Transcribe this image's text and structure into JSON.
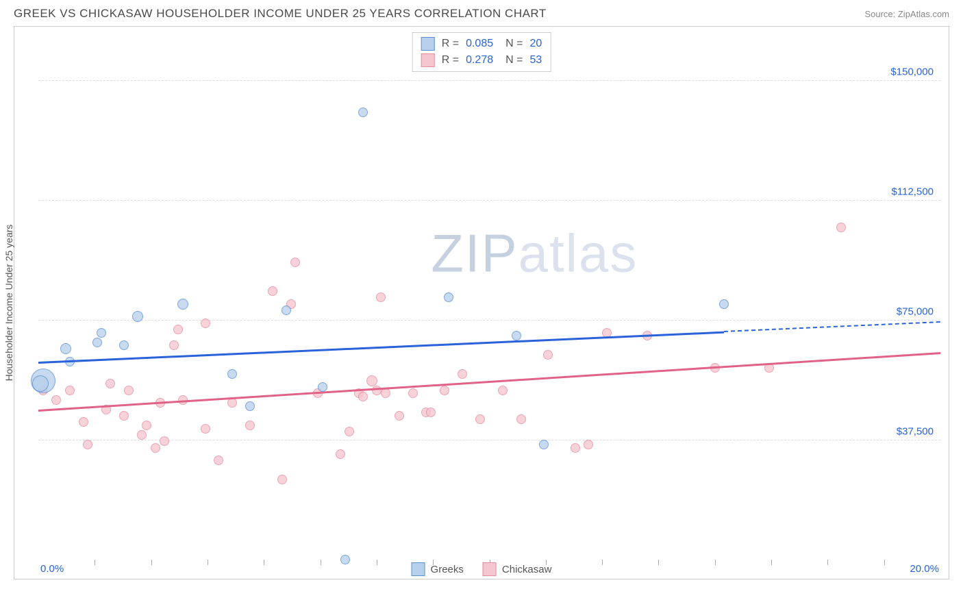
{
  "header": {
    "title": "GREEK VS CHICKASAW HOUSEHOLDER INCOME UNDER 25 YEARS CORRELATION CHART",
    "source": "Source: ZipAtlas.com"
  },
  "chart": {
    "type": "scatter",
    "ylabel": "Householder Income Under 25 years",
    "x_axis": {
      "min": 0.0,
      "max": 20.0,
      "label_left": "0.0%",
      "label_right": "20.0%",
      "tick_positions_pct": [
        6.25,
        12.5,
        18.75,
        25,
        31.25,
        37.5,
        43.75,
        50,
        56.25,
        62.5,
        68.75,
        75,
        81.25,
        87.5,
        93.75
      ]
    },
    "y_axis": {
      "min": 0,
      "max": 165000,
      "ticks": [
        37500,
        75000,
        112500,
        150000
      ],
      "tick_labels": [
        "$37,500",
        "$75,000",
        "$112,500",
        "$150,000"
      ]
    },
    "background_color": "#ffffff",
    "grid_color": "#dddddd",
    "watermark": {
      "text_a": "ZIP",
      "text_b": "atlas"
    },
    "series": {
      "greeks": {
        "label": "Greeks",
        "fill": "#b8d0ec",
        "stroke": "#5a8fd6",
        "trend_color": "#2962d9",
        "stats_r": "0.085",
        "stats_n": "20",
        "trend": {
          "x1": 0.0,
          "y1": 62000,
          "x2_solid": 15.2,
          "y2_solid": 71500,
          "x2_dash": 20.0,
          "y2_dash": 74500
        },
        "points": [
          {
            "x": 0.1,
            "y": 56000,
            "r": 18
          },
          {
            "x": 0.05,
            "y": 55000,
            "r": 12
          },
          {
            "x": 0.6,
            "y": 66000,
            "r": 8
          },
          {
            "x": 0.7,
            "y": 62000,
            "r": 7
          },
          {
            "x": 1.3,
            "y": 68000,
            "r": 7
          },
          {
            "x": 1.4,
            "y": 71000,
            "r": 7
          },
          {
            "x": 1.9,
            "y": 67000,
            "r": 7
          },
          {
            "x": 2.2,
            "y": 76000,
            "r": 8
          },
          {
            "x": 3.2,
            "y": 80000,
            "r": 8
          },
          {
            "x": 4.3,
            "y": 58000,
            "r": 7
          },
          {
            "x": 4.7,
            "y": 48000,
            "r": 7
          },
          {
            "x": 5.5,
            "y": 78000,
            "r": 7
          },
          {
            "x": 6.3,
            "y": 54000,
            "r": 7
          },
          {
            "x": 6.8,
            "y": 0,
            "r": 7
          },
          {
            "x": 7.2,
            "y": 140000,
            "r": 7
          },
          {
            "x": 9.1,
            "y": 82000,
            "r": 7
          },
          {
            "x": 10.6,
            "y": 70000,
            "r": 7
          },
          {
            "x": 11.2,
            "y": 36000,
            "r": 7
          },
          {
            "x": 15.2,
            "y": 80000,
            "r": 7
          }
        ]
      },
      "chickasaw": {
        "label": "Chickasaw",
        "fill": "#f5c6cf",
        "stroke": "#e58ba0",
        "trend_color": "#e06287",
        "stats_r": "0.278",
        "stats_n": "53",
        "trend": {
          "x1": 0.0,
          "y1": 47000,
          "x2_solid": 20.0,
          "y2_solid": 65000
        },
        "points": [
          {
            "x": 0.1,
            "y": 53000,
            "r": 7
          },
          {
            "x": 0.4,
            "y": 50000,
            "r": 7
          },
          {
            "x": 0.7,
            "y": 53000,
            "r": 7
          },
          {
            "x": 1.0,
            "y": 43000,
            "r": 7
          },
          {
            "x": 1.1,
            "y": 36000,
            "r": 7
          },
          {
            "x": 1.5,
            "y": 47000,
            "r": 7
          },
          {
            "x": 1.6,
            "y": 55000,
            "r": 7
          },
          {
            "x": 1.9,
            "y": 45000,
            "r": 7
          },
          {
            "x": 2.0,
            "y": 53000,
            "r": 7
          },
          {
            "x": 2.3,
            "y": 39000,
            "r": 7
          },
          {
            "x": 2.4,
            "y": 42000,
            "r": 7
          },
          {
            "x": 2.6,
            "y": 35000,
            "r": 7
          },
          {
            "x": 2.8,
            "y": 37000,
            "r": 7
          },
          {
            "x": 2.7,
            "y": 49000,
            "r": 7
          },
          {
            "x": 3.0,
            "y": 67000,
            "r": 7
          },
          {
            "x": 3.1,
            "y": 72000,
            "r": 7
          },
          {
            "x": 3.2,
            "y": 50000,
            "r": 7
          },
          {
            "x": 3.7,
            "y": 74000,
            "r": 7
          },
          {
            "x": 3.7,
            "y": 41000,
            "r": 7
          },
          {
            "x": 4.0,
            "y": 31000,
            "r": 7
          },
          {
            "x": 4.3,
            "y": 49000,
            "r": 7
          },
          {
            "x": 4.7,
            "y": 42000,
            "r": 7
          },
          {
            "x": 5.2,
            "y": 84000,
            "r": 7
          },
          {
            "x": 5.4,
            "y": 25000,
            "r": 7
          },
          {
            "x": 5.6,
            "y": 80000,
            "r": 7
          },
          {
            "x": 5.7,
            "y": 93000,
            "r": 7
          },
          {
            "x": 6.2,
            "y": 52000,
            "r": 7
          },
          {
            "x": 6.7,
            "y": 33000,
            "r": 7
          },
          {
            "x": 6.9,
            "y": 40000,
            "r": 7
          },
          {
            "x": 7.1,
            "y": 52000,
            "r": 7
          },
          {
            "x": 7.2,
            "y": 51000,
            "r": 7
          },
          {
            "x": 7.4,
            "y": 56000,
            "r": 8
          },
          {
            "x": 7.5,
            "y": 53000,
            "r": 7
          },
          {
            "x": 7.6,
            "y": 82000,
            "r": 7
          },
          {
            "x": 7.7,
            "y": 52000,
            "r": 7
          },
          {
            "x": 8.0,
            "y": 45000,
            "r": 7
          },
          {
            "x": 8.3,
            "y": 52000,
            "r": 7
          },
          {
            "x": 8.6,
            "y": 46000,
            "r": 7
          },
          {
            "x": 8.7,
            "y": 46000,
            "r": 7
          },
          {
            "x": 9.0,
            "y": 53000,
            "r": 7
          },
          {
            "x": 9.4,
            "y": 58000,
            "r": 7
          },
          {
            "x": 9.8,
            "y": 44000,
            "r": 7
          },
          {
            "x": 10.3,
            "y": 53000,
            "r": 7
          },
          {
            "x": 10.7,
            "y": 44000,
            "r": 7
          },
          {
            "x": 11.3,
            "y": 64000,
            "r": 7
          },
          {
            "x": 11.9,
            "y": 35000,
            "r": 7
          },
          {
            "x": 12.2,
            "y": 36000,
            "r": 7
          },
          {
            "x": 12.6,
            "y": 71000,
            "r": 7
          },
          {
            "x": 13.5,
            "y": 70000,
            "r": 7
          },
          {
            "x": 15.0,
            "y": 60000,
            "r": 7
          },
          {
            "x": 16.2,
            "y": 60000,
            "r": 7
          },
          {
            "x": 17.8,
            "y": 104000,
            "r": 7
          }
        ]
      }
    }
  }
}
